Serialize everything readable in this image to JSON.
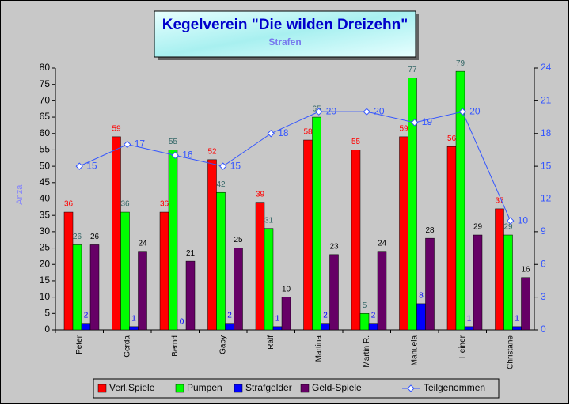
{
  "chart_data": {
    "type": "bar",
    "title": "Kegelverein \"Die wilden Dreizehn\"",
    "subtitle": "Strafen",
    "y_label": "Anzal",
    "categories": [
      "Peter",
      "Gerda",
      "Bernd",
      "Gaby",
      "Ralf",
      "Martina",
      "Martin R.",
      "Manuela",
      "Heiner",
      "Christane"
    ],
    "series": [
      {
        "name": "Verl.Spiele",
        "color": "#ff0000",
        "label_color": "#ff0000",
        "values": [
          36,
          59,
          36,
          52,
          39,
          58,
          55,
          59,
          56,
          37
        ]
      },
      {
        "name": "Pumpen",
        "color": "#00ff00",
        "label_color": "#336666",
        "values": [
          26,
          36,
          55,
          42,
          31,
          65,
          5,
          77,
          79,
          29
        ]
      },
      {
        "name": "Strafgelder",
        "color": "#0000ff",
        "label_color": "#0000ff",
        "values": [
          2,
          1,
          0,
          2,
          1,
          2,
          2,
          8,
          1,
          1
        ]
      },
      {
        "name": "Geld-Spiele",
        "color": "#660066",
        "label_color": "#000000",
        "values": [
          26,
          24,
          21,
          25,
          10,
          23,
          24,
          28,
          29,
          16
        ]
      },
      {
        "name": "Teilgenommen",
        "type": "line",
        "axis": "y2",
        "color": "#3355ff",
        "label_color": "#3355ff",
        "values": [
          15,
          17,
          16,
          15,
          18,
          20,
          20,
          19,
          20,
          10
        ]
      }
    ],
    "ylim": [
      0,
      80
    ],
    "yticks": [
      0,
      5,
      10,
      15,
      20,
      25,
      30,
      35,
      40,
      45,
      50,
      55,
      60,
      65,
      70,
      75,
      80
    ],
    "y2lim": [
      0,
      24
    ],
    "y2ticks": [
      0,
      3,
      6,
      9,
      12,
      15,
      18,
      21,
      24
    ],
    "grid": false,
    "legend": "bottom"
  }
}
